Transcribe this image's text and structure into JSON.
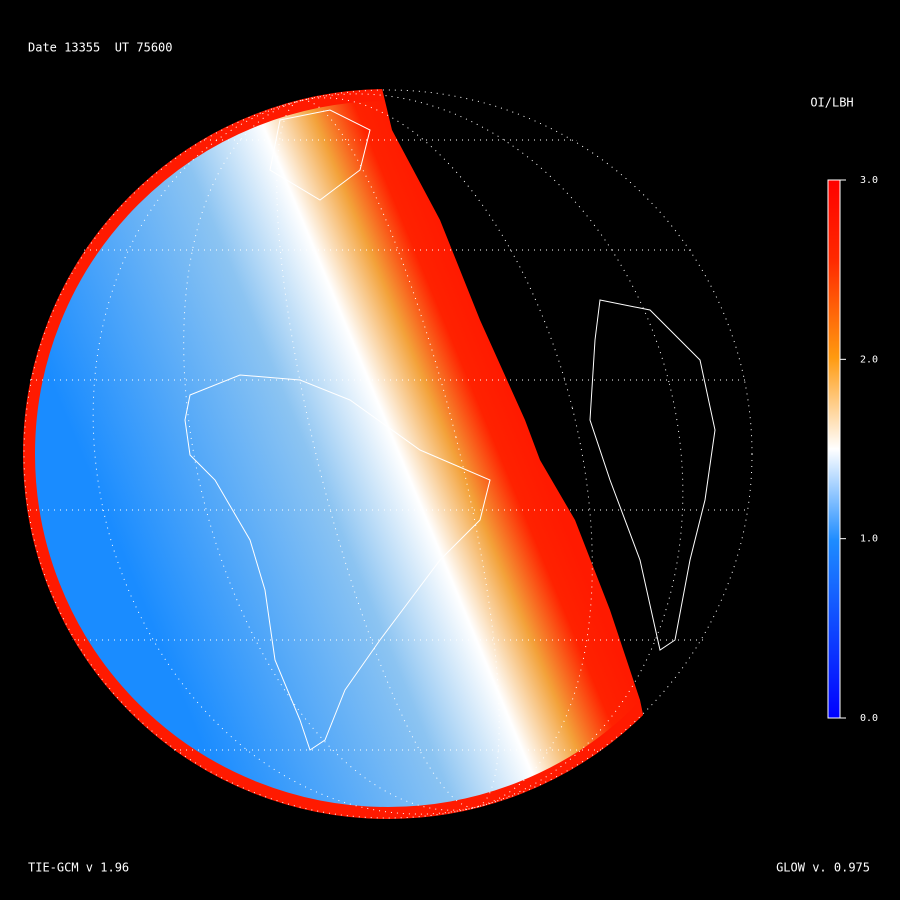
{
  "header": {
    "date_label": "Date 13355  UT 75600"
  },
  "colorbar": {
    "title": "OI/LBH",
    "lim": [
      0,
      3
    ],
    "ticks": [
      {
        "value": 3,
        "label": "3.0"
      },
      {
        "value": 2,
        "label": "2.0"
      },
      {
        "value": 1,
        "label": "1.0"
      },
      {
        "value": 0,
        "label": "0.0"
      }
    ]
  },
  "footer": {
    "left": "TIE-GCM v 1.96",
    "right": "GLOW v. 0.975"
  }
}
